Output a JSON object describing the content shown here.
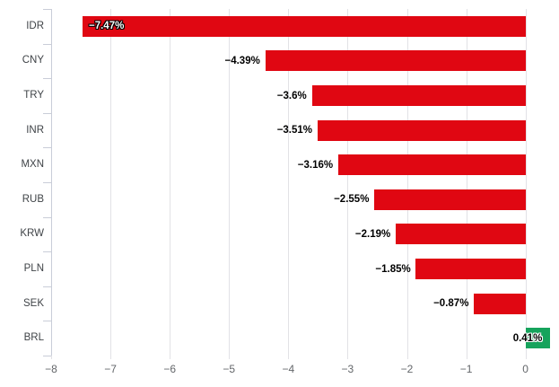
{
  "chart_data": {
    "type": "bar",
    "orientation": "horizontal",
    "title": "",
    "xlabel": "",
    "ylabel": "",
    "categories": [
      "IDR",
      "CNY",
      "TRY",
      "INR",
      "MXN",
      "RUB",
      "KRW",
      "PLN",
      "SEK",
      "BRL"
    ],
    "values": [
      -7.47,
      -4.39,
      -3.6,
      -3.51,
      -3.16,
      -2.55,
      -2.19,
      -1.85,
      -0.87,
      0.41
    ],
    "data_labels": [
      "−7.47%",
      "−4.39%",
      "−3.6%",
      "−3.51%",
      "−3.16%",
      "−2.55%",
      "−2.19%",
      "−1.85%",
      "−0.87%",
      "0.41%"
    ],
    "x_ticks": [
      -8,
      -7,
      -6,
      -5,
      -4,
      -3,
      -2,
      -1,
      0
    ],
    "x_tick_labels": [
      "−8",
      "−7",
      "−6",
      "−5",
      "−4",
      "−3",
      "−2",
      "−1",
      "0"
    ],
    "xlim": [
      -8,
      0.52
    ],
    "grid": true,
    "legend": false,
    "colors": {
      "negative_bar": "#e00712",
      "positive_bar": "#16a35c",
      "gridline": "#e2e2e6",
      "axis": "#c9cdd8",
      "category_label": "#3f4347",
      "tick_label": "#63666a",
      "data_label": "#000000",
      "inside_data_label": "#ffffff"
    }
  }
}
